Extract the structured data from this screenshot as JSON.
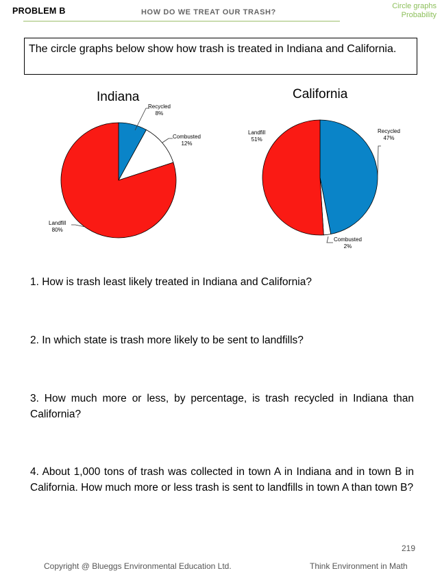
{
  "header": {
    "problem": "PROBLEM B",
    "title": "HOW DO WE TREAT OUR TRASH?",
    "topic_line1": "Circle graphs",
    "topic_line2": "Probability"
  },
  "intro": "The circle graphs below show how trash is treated in Indiana and California.",
  "chart_data": [
    {
      "type": "pie",
      "title": "Indiana",
      "slices": [
        {
          "label": "Recycled",
          "value": 8,
          "value_label": "8%",
          "color": "#0a84c8"
        },
        {
          "label": "Combusted",
          "value": 12,
          "value_label": "12%",
          "color": "#ffffff"
        },
        {
          "label": "Landfill",
          "value": 80,
          "value_label": "80%",
          "color": "#fa1a14"
        }
      ]
    },
    {
      "type": "pie",
      "title": "California",
      "slices": [
        {
          "label": "Recycled",
          "value": 47,
          "value_label": "47%",
          "color": "#0a84c8"
        },
        {
          "label": "Combusted",
          "value": 2,
          "value_label": "2%",
          "color": "#ffffff"
        },
        {
          "label": "Landfill",
          "value": 51,
          "value_label": "51%",
          "color": "#fa1a14"
        }
      ]
    }
  ],
  "questions": [
    "1. How is trash least likely treated in Indiana and California?",
    "2. In which state is trash more likely to be sent to landfills?",
    "3. How much more or less, by percentage, is trash recycled in Indiana than California?",
    "4. About 1,000 tons of trash was collected in town A in Indiana and in town B in California. How much more or less trash is sent to landfills in town A than town B?"
  ],
  "footer": {
    "page": "219",
    "copyright": "Copyright @ Blueggs Environmental Education Ltd.",
    "book": "Think Environment in Math"
  }
}
